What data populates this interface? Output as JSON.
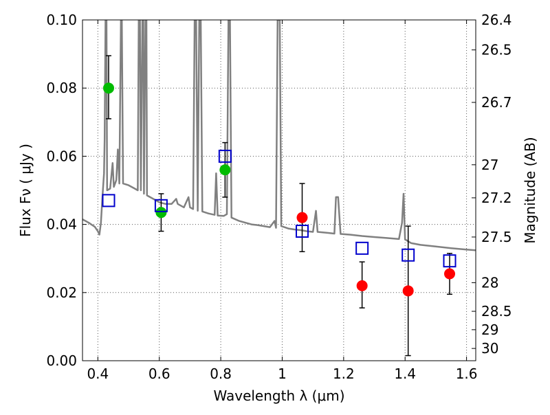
{
  "chart_data": {
    "type": "scatter",
    "xlabel": "Wavelength  λ (μm)",
    "ylabel": "Flux  Fν  ( μJy )",
    "y2label": "Magnitude (AB)",
    "xlim": [
      0.35,
      1.63
    ],
    "ylim": [
      0.0,
      0.1
    ],
    "grid": true,
    "x_ticks": [
      0.4,
      0.6,
      0.8,
      1.0,
      1.2,
      1.4,
      1.6
    ],
    "x_tick_labels": [
      "0.4",
      "0.6",
      "0.8",
      "1",
      "1.2",
      "1.4",
      "1.6"
    ],
    "y_ticks": [
      0.0,
      0.02,
      0.04,
      0.06,
      0.08,
      0.1
    ],
    "y_tick_labels": [
      "0.00",
      "0.02",
      "0.04",
      "0.06",
      "0.08",
      "0.10"
    ],
    "right_ticks": [
      {
        "flux": 0.1,
        "label": "26.4"
      },
      {
        "flux": 0.0912,
        "label": "26.5"
      },
      {
        "flux": 0.0758,
        "label": "26.7"
      },
      {
        "flux": 0.0575,
        "label": "27"
      },
      {
        "flux": 0.0478,
        "label": "27.2"
      },
      {
        "flux": 0.0363,
        "label": "27.5"
      },
      {
        "flux": 0.0229,
        "label": "28"
      },
      {
        "flux": 0.0145,
        "label": "28.5"
      },
      {
        "flux": 0.0091,
        "label": "29"
      },
      {
        "flux": 0.0036,
        "label": "30"
      }
    ],
    "colors": {
      "green": "#00bb00",
      "red": "#ff0000",
      "square": "#0000cc",
      "model": "#808080",
      "grid": "#555555"
    },
    "series": [
      {
        "marker": "circle",
        "color": "#00bb00",
        "points": [
          {
            "x": 0.435,
            "y": 0.08,
            "err_lo": 0.071,
            "err_hi": 0.0895
          },
          {
            "x": 0.606,
            "y": 0.0435,
            "err_lo": 0.038,
            "err_hi": 0.049
          },
          {
            "x": 0.814,
            "y": 0.056,
            "err_lo": 0.048,
            "err_hi": 0.064
          }
        ]
      },
      {
        "marker": "circle",
        "color": "#ff0000",
        "points": [
          {
            "x": 1.065,
            "y": 0.042,
            "err_lo": 0.032,
            "err_hi": 0.052
          },
          {
            "x": 1.26,
            "y": 0.022,
            "err_lo": 0.0155,
            "err_hi": 0.029
          },
          {
            "x": 1.41,
            "y": 0.0205,
            "err_lo": 0.0015,
            "err_hi": 0.0395
          },
          {
            "x": 1.545,
            "y": 0.0255,
            "err_lo": 0.0195,
            "err_hi": 0.0315
          }
        ]
      },
      {
        "marker": "square",
        "color": "#0000cc",
        "points": [
          {
            "x": 0.435,
            "y": 0.047
          },
          {
            "x": 0.606,
            "y": 0.0455
          },
          {
            "x": 0.814,
            "y": 0.06
          },
          {
            "x": 1.065,
            "y": 0.038
          },
          {
            "x": 1.26,
            "y": 0.033
          },
          {
            "x": 1.41,
            "y": 0.031
          },
          {
            "x": 1.545,
            "y": 0.0293
          }
        ]
      }
    ],
    "model_spectrum": {
      "color": "#808080",
      "points": [
        [
          0.35,
          0.0415
        ],
        [
          0.37,
          0.0405
        ],
        [
          0.39,
          0.0393
        ],
        [
          0.4,
          0.038
        ],
        [
          0.405,
          0.037
        ],
        [
          0.41,
          0.0405
        ],
        [
          0.415,
          0.048
        ],
        [
          0.42,
          0.055
        ],
        [
          0.422,
          0.065
        ],
        [
          0.425,
          0.1
        ],
        [
          0.428,
          0.1
        ],
        [
          0.43,
          0.05
        ],
        [
          0.44,
          0.0505
        ],
        [
          0.448,
          0.058
        ],
        [
          0.452,
          0.051
        ],
        [
          0.46,
          0.053
        ],
        [
          0.465,
          0.062
        ],
        [
          0.47,
          0.052
        ],
        [
          0.475,
          0.1
        ],
        [
          0.478,
          0.1
        ],
        [
          0.482,
          0.052
        ],
        [
          0.5,
          0.0515
        ],
        [
          0.52,
          0.0505
        ],
        [
          0.53,
          0.05
        ],
        [
          0.533,
          0.1
        ],
        [
          0.537,
          0.1
        ],
        [
          0.54,
          0.05
        ],
        [
          0.545,
          0.1
        ],
        [
          0.548,
          0.1
        ],
        [
          0.55,
          0.049
        ],
        [
          0.555,
          0.1
        ],
        [
          0.558,
          0.1
        ],
        [
          0.56,
          0.0485
        ],
        [
          0.58,
          0.0475
        ],
        [
          0.6,
          0.0465
        ],
        [
          0.62,
          0.046
        ],
        [
          0.64,
          0.046
        ],
        [
          0.655,
          0.0475
        ],
        [
          0.66,
          0.046
        ],
        [
          0.68,
          0.045
        ],
        [
          0.695,
          0.048
        ],
        [
          0.7,
          0.045
        ],
        [
          0.71,
          0.0445
        ],
        [
          0.715,
          0.1
        ],
        [
          0.72,
          0.1
        ],
        [
          0.725,
          0.044
        ],
        [
          0.73,
          0.1
        ],
        [
          0.735,
          0.1
        ],
        [
          0.74,
          0.0438
        ],
        [
          0.76,
          0.0432
        ],
        [
          0.78,
          0.0428
        ],
        [
          0.785,
          0.055
        ],
        [
          0.79,
          0.0426
        ],
        [
          0.81,
          0.0425
        ],
        [
          0.82,
          0.043
        ],
        [
          0.825,
          0.1
        ],
        [
          0.83,
          0.1
        ],
        [
          0.835,
          0.042
        ],
        [
          0.86,
          0.041
        ],
        [
          0.88,
          0.0405
        ],
        [
          0.9,
          0.04
        ],
        [
          0.92,
          0.0398
        ],
        [
          0.94,
          0.0395
        ],
        [
          0.96,
          0.0392
        ],
        [
          0.975,
          0.041
        ],
        [
          0.98,
          0.039
        ],
        [
          0.985,
          0.1
        ],
        [
          0.992,
          0.1
        ],
        [
          0.997,
          0.0395
        ],
        [
          1.02,
          0.0388
        ],
        [
          1.04,
          0.0385
        ],
        [
          1.06,
          0.0383
        ],
        [
          1.08,
          0.038
        ],
        [
          1.1,
          0.0378
        ],
        [
          1.11,
          0.044
        ],
        [
          1.115,
          0.0378
        ],
        [
          1.15,
          0.0375
        ],
        [
          1.17,
          0.0373
        ],
        [
          1.175,
          0.048
        ],
        [
          1.182,
          0.048
        ],
        [
          1.19,
          0.0372
        ],
        [
          1.22,
          0.037
        ],
        [
          1.26,
          0.0366
        ],
        [
          1.3,
          0.0363
        ],
        [
          1.34,
          0.036
        ],
        [
          1.38,
          0.0357
        ],
        [
          1.39,
          0.0405
        ],
        [
          1.395,
          0.049
        ],
        [
          1.4,
          0.0356
        ],
        [
          1.42,
          0.0345
        ],
        [
          1.45,
          0.034
        ],
        [
          1.5,
          0.0335
        ],
        [
          1.55,
          0.033
        ],
        [
          1.6,
          0.0326
        ],
        [
          1.63,
          0.0324
        ]
      ]
    }
  }
}
